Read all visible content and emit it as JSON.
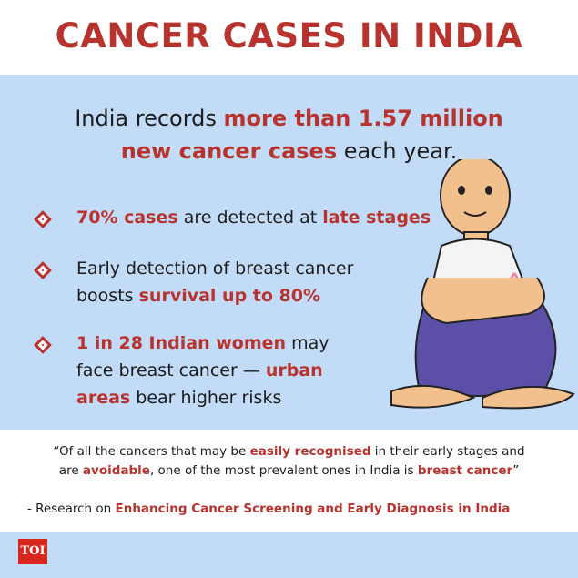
{
  "title": "CANCER CASES IN INDIA",
  "headline": [
    [
      {
        "text": "India records "
      },
      {
        "text": "more than 1.57 million",
        "em": true
      }
    ],
    [
      {
        "text": "new cancer cases",
        "em": true
      },
      {
        "text": " each year."
      }
    ]
  ],
  "bullets": [
    [
      [
        {
          "text": "70% cases",
          "em": true
        },
        {
          "text": " are detected at "
        },
        {
          "text": "late stages",
          "em": true
        }
      ]
    ],
    [
      [
        {
          "text": "Early detection of breast cancer"
        }
      ],
      [
        {
          "text": "boosts "
        },
        {
          "text": "survival up to 80%",
          "em": true
        }
      ]
    ],
    [
      [
        {
          "text": "1 in 28 Indian women",
          "em": true
        },
        {
          "text": " may"
        }
      ],
      [
        {
          "text": "face breast cancer — "
        },
        {
          "text": "urban",
          "em": true
        }
      ],
      [
        {
          "text": "areas",
          "em": true
        },
        {
          "text": " bear higher risks"
        }
      ]
    ]
  ],
  "quote": [
    [
      {
        "text": "“Of all the cancers that may be "
      },
      {
        "text": "easily recognised",
        "em": true
      },
      {
        "text": " in their early stages and"
      }
    ],
    [
      {
        "text": "are "
      },
      {
        "text": "avoidable",
        "em": true
      },
      {
        "text": ", one of the most prevalent ones in India is "
      },
      {
        "text": "breast cancer",
        "em": true
      },
      {
        "text": "”"
      }
    ]
  ],
  "source": [
    [
      {
        "text": "- Research on "
      },
      {
        "text": "Enhancing Cancer Screening and Early Diagnosis in India",
        "em": true
      }
    ]
  ],
  "logo": "TOI"
}
